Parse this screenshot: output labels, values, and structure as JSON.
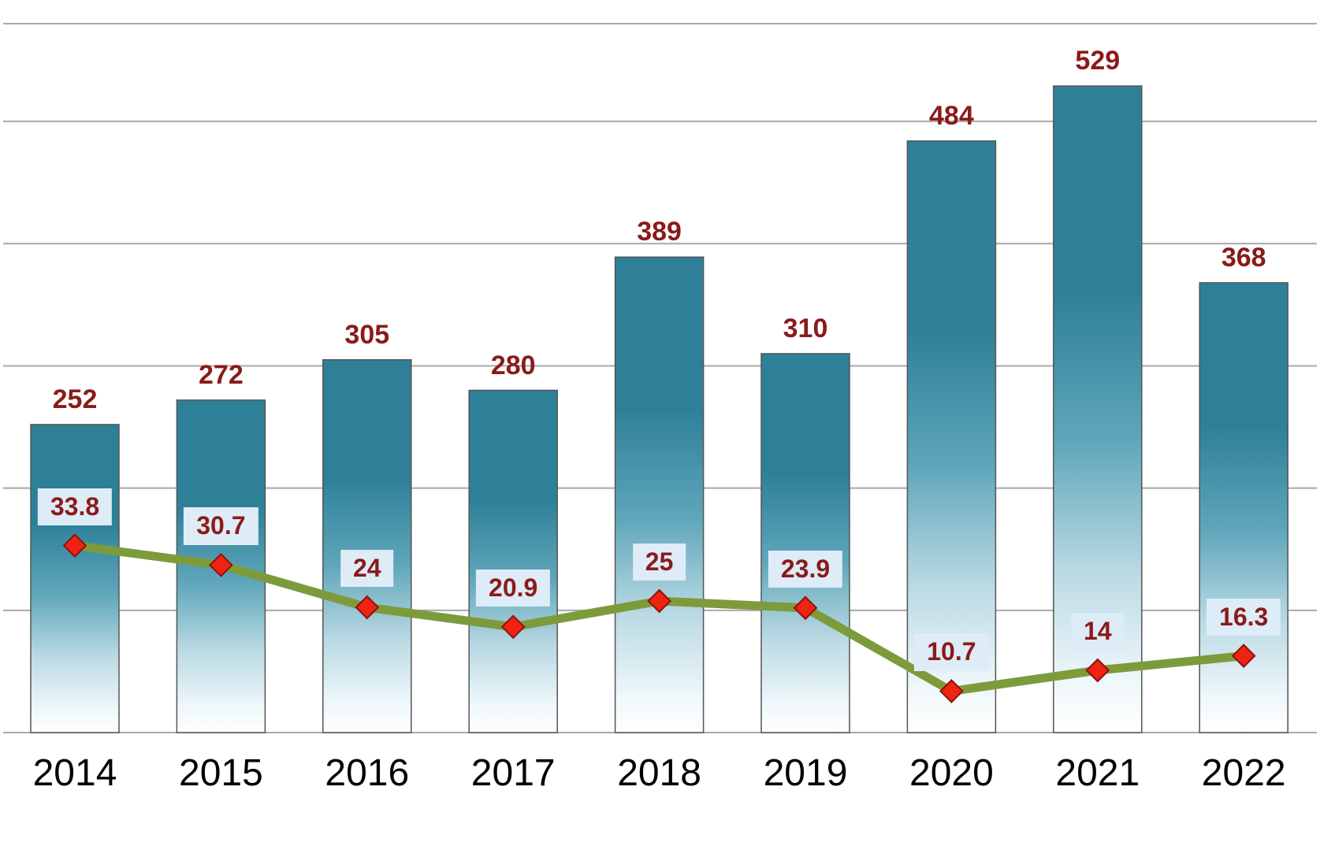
{
  "chart_data": {
    "type": "bar",
    "subtype": "combo-bar-line",
    "title": "",
    "xlabel": "",
    "ylabel": "",
    "categories": [
      "2014",
      "2015",
      "2016",
      "2017",
      "2018",
      "2019",
      "2020",
      "2021",
      "2022"
    ],
    "series": [
      {
        "name": "bar-series",
        "type": "bar",
        "values": [
          252,
          272,
          305,
          280,
          389,
          310,
          484,
          529,
          368
        ],
        "labels": [
          "252",
          "272",
          "305",
          "280",
          "389",
          "310",
          "484",
          "529",
          "368"
        ]
      },
      {
        "name": "line-series",
        "type": "line",
        "values": [
          33.8,
          30.7,
          24,
          20.9,
          25,
          23.9,
          10.7,
          14,
          16.3
        ],
        "labels": [
          "33.8",
          "30.7",
          "24",
          "20.9",
          "25",
          "23.9",
          "10.7",
          "14",
          "16.3"
        ]
      }
    ],
    "bar_axis": {
      "min": 0,
      "max": 580,
      "gridline_values": [
        100,
        200,
        300,
        400,
        500
      ]
    },
    "grid": true,
    "legend": "none",
    "colors": {
      "bar_top": "#2e8099",
      "bar_mid": "#5fa6ba",
      "bar_low": "#b9d9e3",
      "bar_bottom": "#ffffff",
      "bar_border": "#555555",
      "bar_label": "#8b1a1a",
      "line": "#7e9b3c",
      "marker_fill": "#ef2312",
      "marker_stroke": "#8f1010",
      "line_label_text": "#8b1a1a",
      "line_label_bg": "#ddecf7",
      "gridline": "#a8a8a8",
      "axis_text": "#000000"
    }
  }
}
